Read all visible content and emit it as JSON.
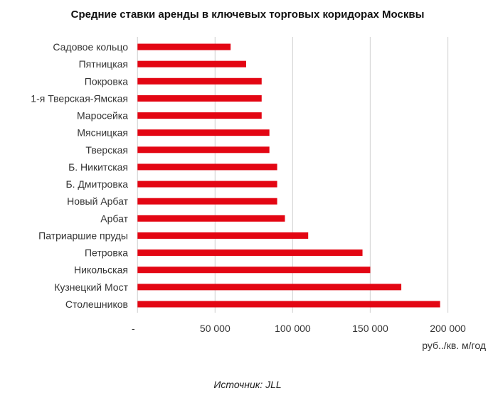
{
  "chart_data": {
    "type": "bar",
    "orientation": "horizontal",
    "title": "Средние ставки аренды в ключевых торговых коридорах Москвы",
    "categories": [
      "Садовое кольцо",
      "Пятницкая",
      "Покровка",
      "1-я Тверская-Ямская",
      "Маросейка",
      "Мясницкая",
      "Тверская",
      "Б. Никитская",
      "Б. Дмитровка",
      "Новый Арбат",
      "Арбат",
      "Патриаршие пруды",
      "Петровка",
      "Никольская",
      "Кузнецкий Мост",
      "Столешников"
    ],
    "values": [
      60000,
      70000,
      80000,
      80000,
      80000,
      85000,
      85000,
      90000,
      90000,
      90000,
      95000,
      110000,
      145000,
      150000,
      170000,
      195000
    ],
    "xlabel": "руб../кв. м/год",
    "ylabel": "",
    "xlim": [
      0,
      200000
    ],
    "ticks": [
      0,
      50000,
      100000,
      150000,
      200000
    ],
    "tick_labels": [
      "-",
      "50 000",
      "100 000",
      "150 000",
      "200 000"
    ],
    "grid": true,
    "bar_color": "#e30613",
    "grid_color": "#d9d9d9",
    "source": "Источник: JLL"
  }
}
